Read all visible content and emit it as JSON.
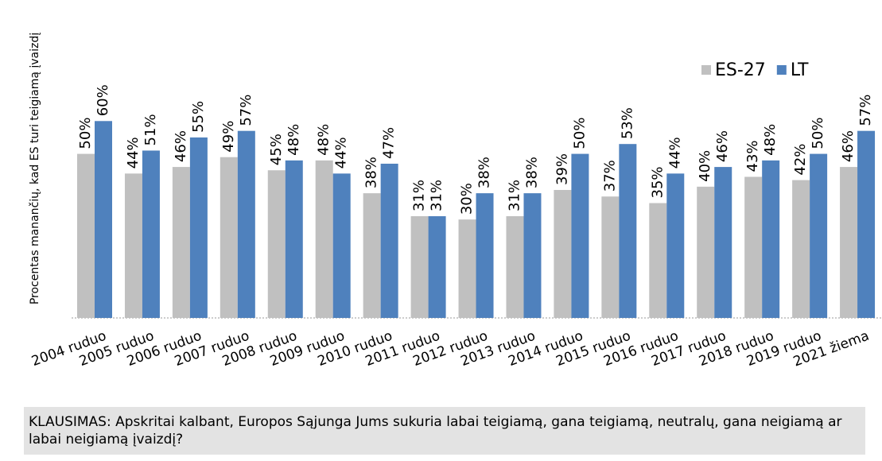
{
  "chart_data": {
    "type": "bar",
    "y_axis_label": "Procentas manančių, kad ES turi teigiamą įvaizdį",
    "categories": [
      "2004 ruduo",
      "2005 ruduo",
      "2006 ruduo",
      "2007 ruduo",
      "2008 ruduo",
      "2009 ruduo",
      "2010 ruduo",
      "2011 ruduo",
      "2012 ruduo",
      "2013 ruduo",
      "2014 ruduo",
      "2015 ruduo",
      "2016 ruduo",
      "2017 ruduo",
      "2018 ruduo",
      "2019 ruduo",
      "2021 žiema"
    ],
    "series": [
      {
        "name": "ES-27",
        "color": "#c0c0c0",
        "values": [
          50,
          44,
          46,
          49,
          45,
          48,
          38,
          31,
          30,
          31,
          39,
          37,
          35,
          40,
          43,
          42,
          46
        ],
        "value_labels": [
          "50%",
          "44%",
          "46%",
          "49%",
          "45%",
          "48%",
          "38%",
          "31%",
          "30%",
          "31%",
          "39%",
          "37%",
          "35%",
          "40%",
          "43%",
          "42%",
          "46%"
        ]
      },
      {
        "name": "LT",
        "color": "#4f81bd",
        "values": [
          60,
          51,
          55,
          57,
          48,
          44,
          47,
          31,
          38,
          38,
          50,
          53,
          44,
          46,
          48,
          50,
          57
        ],
        "value_labels": [
          "60%",
          "51%",
          "55%",
          "57%",
          "48%",
          "44%",
          "47%",
          "31%",
          "38%",
          "38%",
          "50%",
          "53%",
          "44%",
          "46%",
          "48%",
          "50%",
          "57%"
        ]
      }
    ],
    "ylim": [
      0,
      70
    ],
    "legend": "top-right",
    "note": "KLAUSIMAS: Apskritai kalbant, Europos Sąjunga Jums sukuria labai teigiamą, gana teigiamą, neutralų, gana neigiamą ar labai neigiamą įvaizdį?"
  }
}
